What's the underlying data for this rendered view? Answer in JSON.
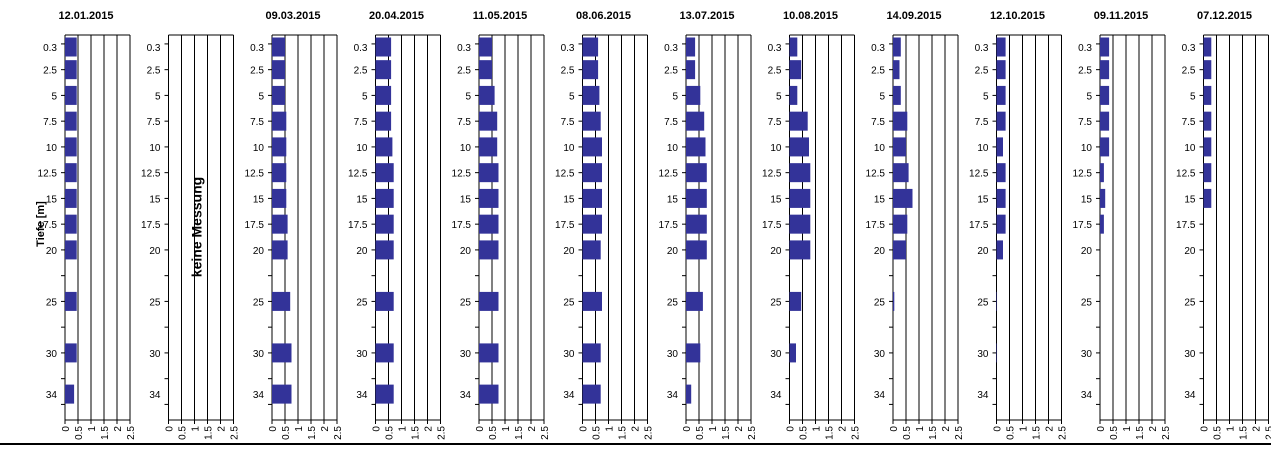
{
  "chart_data": {
    "type": "bar",
    "orientation": "horizontal",
    "ylabel": "Tiefe [m]",
    "depths": [
      "0.3",
      "2.5",
      "5",
      "7.5",
      "10",
      "12.5",
      "15",
      "17.5",
      "20",
      "25",
      "30",
      "34"
    ],
    "xticks": [
      "0",
      "0.5",
      "1",
      "1.5",
      "2",
      "2.5"
    ],
    "xlim": [
      0,
      2.5
    ],
    "bar_color": "#333399",
    "panels": [
      {
        "title": "12.01.2015",
        "values": [
          0.45,
          0.45,
          0.45,
          0.45,
          0.45,
          0.45,
          0.45,
          0.45,
          0.45,
          0.45,
          0.45,
          0.35
        ]
      },
      {
        "title": "",
        "note": "keine Messung",
        "values": []
      },
      {
        "title": "09.03.2015",
        "values": [
          0.5,
          0.5,
          0.5,
          0.55,
          0.55,
          0.55,
          0.55,
          0.6,
          0.6,
          0.7,
          0.75,
          0.75
        ]
      },
      {
        "title": "20.04.2015",
        "values": [
          0.6,
          0.6,
          0.6,
          0.6,
          0.65,
          0.7,
          0.7,
          0.7,
          0.7,
          0.7,
          0.7,
          0.7
        ]
      },
      {
        "title": "11.05.2015",
        "values": [
          0.5,
          0.5,
          0.6,
          0.7,
          0.7,
          0.75,
          0.75,
          0.75,
          0.75,
          0.75,
          0.75,
          0.75
        ]
      },
      {
        "title": "08.06.2015",
        "values": [
          0.6,
          0.6,
          0.65,
          0.7,
          0.75,
          0.75,
          0.75,
          0.75,
          0.7,
          0.75,
          0.7,
          0.7
        ]
      },
      {
        "title": "13.07.2015",
        "values": [
          0.35,
          0.35,
          0.55,
          0.7,
          0.75,
          0.8,
          0.8,
          0.8,
          0.8,
          0.65,
          0.55,
          0.2
        ]
      },
      {
        "title": "10.08.2015",
        "values": [
          0.3,
          0.45,
          0.3,
          0.7,
          0.75,
          0.8,
          0.8,
          0.8,
          0.8,
          0.45,
          0.25,
          0
        ]
      },
      {
        "title": "14.09.2015",
        "values": [
          0.3,
          0.25,
          0.3,
          0.55,
          0.5,
          0.6,
          0.75,
          0.55,
          0.5,
          0.05,
          0,
          0
        ]
      },
      {
        "title": "12.10.2015",
        "values": [
          0.35,
          0.35,
          0.35,
          0.35,
          0.25,
          0.35,
          0.35,
          0.35,
          0.25,
          0.02,
          0.02,
          0
        ]
      },
      {
        "title": "09.11.2015",
        "values": [
          0.35,
          0.35,
          0.35,
          0.35,
          0.35,
          0.15,
          0.2,
          0.15,
          0,
          0,
          0,
          0
        ]
      },
      {
        "title": "07.12.2015",
        "values": [
          0.3,
          0.3,
          0.3,
          0.3,
          0.3,
          0.3,
          0.3,
          0,
          0,
          0,
          0,
          0
        ]
      }
    ]
  }
}
